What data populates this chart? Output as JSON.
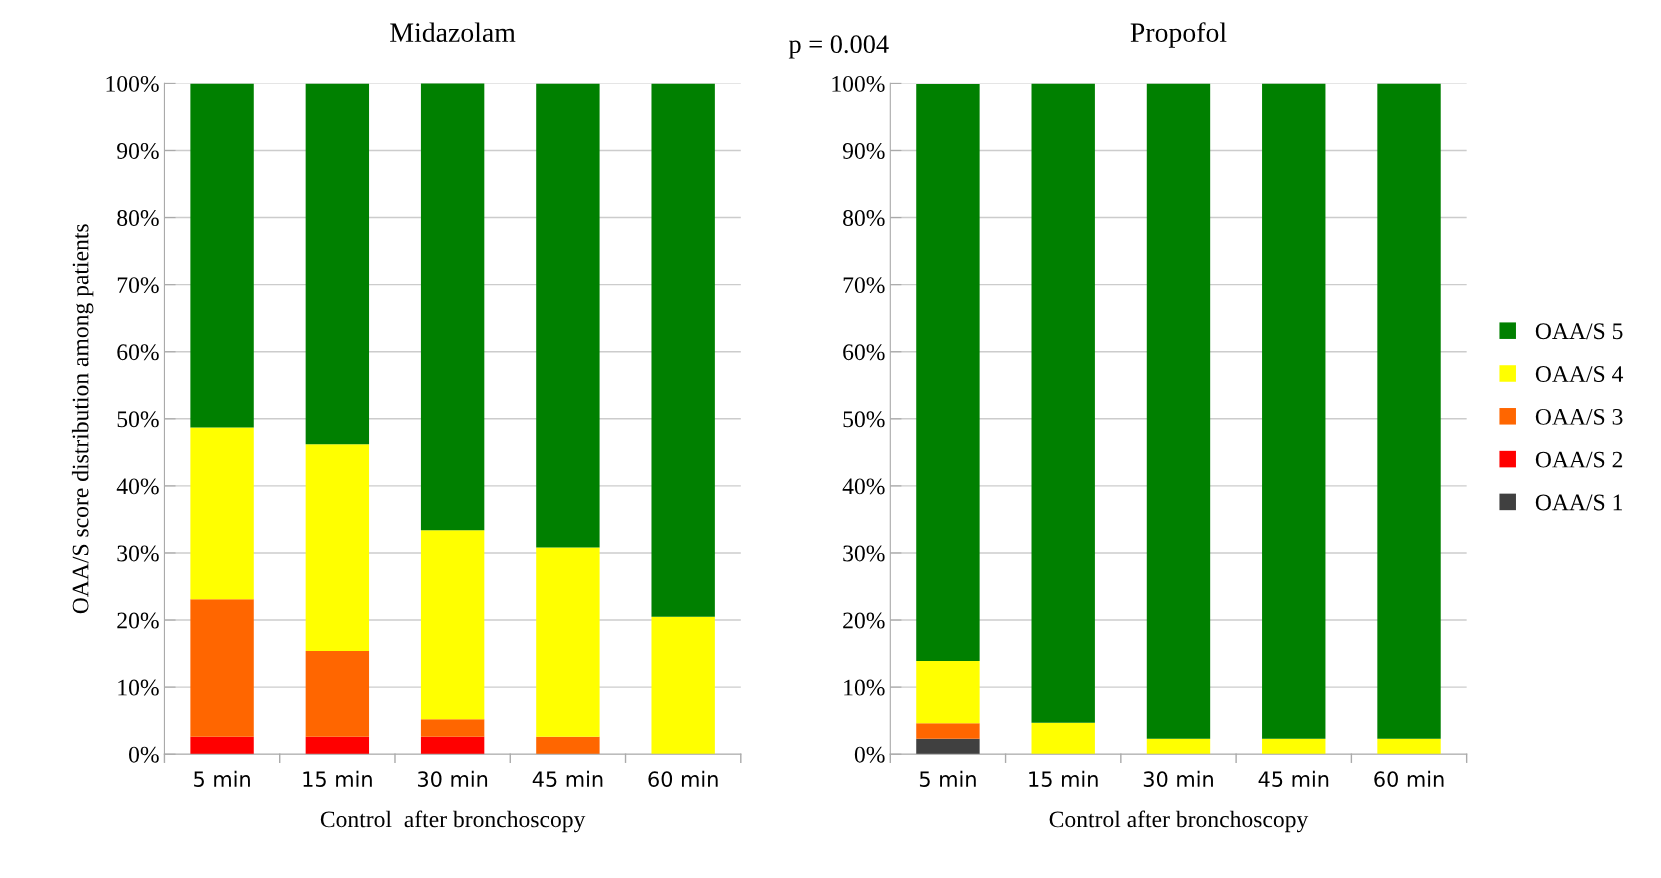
{
  "chart_data": [
    {
      "type": "bar",
      "stacked": true,
      "title": "Midazolam",
      "xlabel": "Control  after bronchoscopy",
      "ylabel": "OAA/S score distribution among patients",
      "categories": [
        "5 min",
        "15 min",
        "30 min",
        "45 min",
        "60 min"
      ],
      "series": [
        {
          "color": "#ff0000",
          "values": [
            2.6,
            2.6,
            2.6,
            null,
            null
          ]
        },
        {
          "color": "#ff6600",
          "values": [
            20.5,
            12.8,
            2.6,
            2.6,
            null
          ]
        },
        {
          "color": "#ffff00",
          "values": [
            25.6,
            30.8,
            28.2,
            28.2,
            20.5
          ]
        },
        {
          "color": "#008000",
          "values": [
            51.3,
            53.8,
            66.7,
            69.2,
            79.5
          ]
        }
      ],
      "ylim": [
        0,
        100
      ],
      "yticks": [
        {
          "value": 0,
          "label": "0%"
        },
        {
          "value": 10,
          "label": "10%"
        },
        {
          "value": 20,
          "label": "20%"
        },
        {
          "value": 30,
          "label": "30%"
        },
        {
          "value": 40,
          "label": "40%"
        },
        {
          "value": 50,
          "label": "50%"
        },
        {
          "value": 60,
          "label": "60%"
        },
        {
          "value": 70,
          "label": "70%"
        },
        {
          "value": 80,
          "label": "80%"
        },
        {
          "value": 90,
          "label": "90%"
        },
        {
          "value": 100,
          "label": "100%"
        }
      ],
      "grid": "y",
      "annotations": [
        "p = 0.004"
      ]
    },
    {
      "type": "bar",
      "stacked": true,
      "title": "Propofol",
      "xlabel": "Control after bronchoscopy",
      "categories": [
        "5 min",
        "15 min",
        "30 min",
        "45 min",
        "60 min"
      ],
      "series": [
        {
          "name": "OAA/S 1",
          "color": "#404040",
          "values": [
            2.3,
            null,
            null,
            null,
            null
          ]
        },
        {
          "name": "OAA/S 2",
          "color": "#ff0000",
          "values": [
            null,
            null,
            null,
            null,
            null
          ]
        },
        {
          "name": "OAA/S 3",
          "color": "#ff6600",
          "values": [
            2.3,
            null,
            null,
            null,
            null
          ]
        },
        {
          "name": "OAA/S 4",
          "color": "#ffff00",
          "values": [
            9.3,
            4.7,
            2.3,
            2.3,
            2.3
          ]
        },
        {
          "name": "OAA/S 5",
          "color": "#008000",
          "values": [
            86.0,
            95.3,
            97.7,
            97.7,
            97.7
          ]
        }
      ],
      "ylim": [
        0,
        100
      ],
      "yticks": [
        {
          "value": 0,
          "label": "0%"
        },
        {
          "value": 10,
          "label": "10%"
        },
        {
          "value": 20,
          "label": "20%"
        },
        {
          "value": 30,
          "label": "30%"
        },
        {
          "value": 40,
          "label": "40%"
        },
        {
          "value": 50,
          "label": "50%"
        },
        {
          "value": 60,
          "label": "60%"
        },
        {
          "value": 70,
          "label": "70%"
        },
        {
          "value": 80,
          "label": "80%"
        },
        {
          "value": 90,
          "label": "90%"
        },
        {
          "value": 100,
          "label": "100%"
        }
      ],
      "grid": "y",
      "legend": "right"
    }
  ]
}
